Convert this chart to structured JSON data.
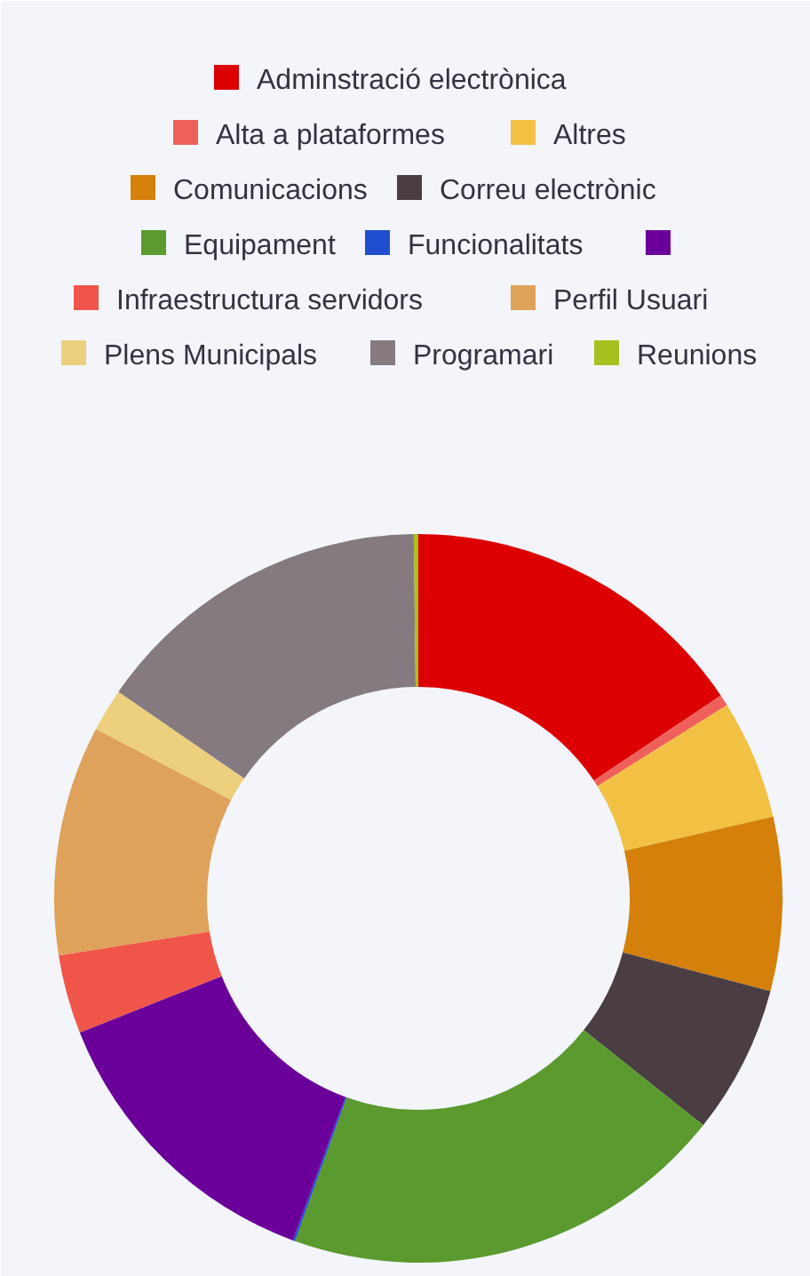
{
  "chart_data": {
    "type": "donut",
    "categories": [
      "Adminstració electrònica",
      "Alta a plataformes",
      "Altres",
      "Comunicacions",
      "Correu electrònic",
      "Equipament",
      "Funcionalitats",
      null,
      "Infraestructura servidors",
      "Perfil Usuari",
      "Plens Municipals",
      "Programari",
      "Reunions"
    ],
    "values": [
      15.6,
      0.5,
      5.3,
      7.7,
      6.6,
      19.8,
      0.1,
      13.4,
      3.5,
      10.2,
      1.9,
      15.2,
      0.2
    ],
    "colors": [
      "#dd0000",
      "#f0605a",
      "#f2c144",
      "#d4800a",
      "#4a3e42",
      "#5a9a2e",
      "#1f4fd0",
      "#6a0099",
      "#f0554a",
      "#dea25a",
      "#ecd07e",
      "#857a80",
      "#a8c020"
    ],
    "legend": "top"
  }
}
